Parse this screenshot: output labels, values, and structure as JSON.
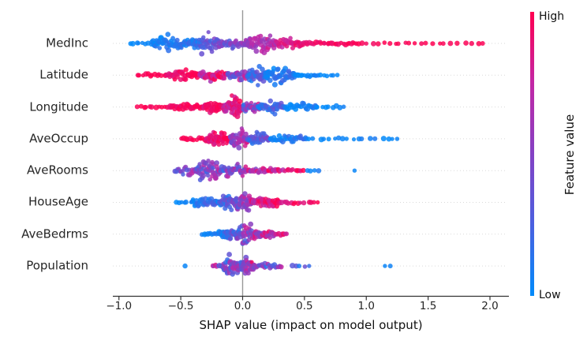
{
  "chart_data": {
    "type": "beeswarm",
    "x_axis": {
      "label": "SHAP value (impact on model output)",
      "ticks": [
        -1.0,
        -0.5,
        0.0,
        0.5,
        1.0,
        1.5,
        2.0
      ],
      "tick_labels": [
        "−1.0",
        "−0.5",
        "0.0",
        "0.5",
        "1.0",
        "1.5",
        "2.0"
      ],
      "lim": [
        -1.05,
        2.15
      ],
      "zero_reference_line": 0.0
    },
    "grid": "dotted-horizontal",
    "background": "#ffffff",
    "colorbar": {
      "title": "Feature value",
      "high_label": "High",
      "low_label": "Low",
      "color_high": "#ff0051",
      "color_low": "#008bfb"
    },
    "colormap": [
      {
        "t": 0.0,
        "color": "#008bfb"
      },
      {
        "t": 0.25,
        "color": "#4a60e0"
      },
      {
        "t": 0.5,
        "color": "#8441c4"
      },
      {
        "t": 0.75,
        "color": "#c327a5"
      },
      {
        "t": 1.0,
        "color": "#ff0051"
      }
    ],
    "clusters_format": [
      "x_min",
      "x_max",
      "count",
      "width_amplitude_0to1",
      "color_start_0to1",
      "color_end_0to1",
      "color_jitter"
    ],
    "features": [
      {
        "name": "MedInc",
        "shap_min": -0.92,
        "shap_max": 1.97,
        "clusters": [
          [
            -0.92,
            -0.74,
            7,
            0.1,
            0.02,
            0.05,
            0.03
          ],
          [
            -0.74,
            -0.45,
            55,
            0.75,
            0.02,
            0.15,
            0.1
          ],
          [
            -0.45,
            -0.15,
            60,
            0.85,
            0.1,
            0.45,
            0.15
          ],
          [
            -0.15,
            0.02,
            25,
            0.45,
            0.35,
            0.55,
            0.15
          ],
          [
            0.02,
            0.28,
            55,
            0.8,
            0.55,
            0.75,
            0.15
          ],
          [
            0.28,
            0.5,
            30,
            0.45,
            0.8,
            0.92,
            0.08
          ],
          [
            0.5,
            0.95,
            28,
            0.18,
            0.93,
            1.0,
            0.05
          ],
          [
            0.95,
            1.55,
            14,
            0.1,
            0.97,
            1.0,
            0.03
          ],
          [
            1.55,
            1.97,
            8,
            0.06,
            0.98,
            1.0,
            0.02
          ]
        ]
      },
      {
        "name": "Latitude",
        "shap_min": -0.86,
        "shap_max": 0.78,
        "clusters": [
          [
            -0.86,
            -0.62,
            12,
            0.12,
            0.97,
            1.0,
            0.04
          ],
          [
            -0.62,
            -0.35,
            40,
            0.45,
            0.92,
            1.0,
            0.08
          ],
          [
            -0.35,
            -0.12,
            45,
            0.55,
            0.7,
            0.95,
            0.18
          ],
          [
            -0.12,
            0.06,
            30,
            0.5,
            0.4,
            0.65,
            0.25
          ],
          [
            0.04,
            0.2,
            45,
            0.8,
            0.15,
            0.35,
            0.15
          ],
          [
            0.18,
            0.42,
            55,
            0.9,
            0.02,
            0.2,
            0.1
          ],
          [
            0.42,
            0.62,
            14,
            0.18,
            0.0,
            0.08,
            0.05
          ],
          [
            0.62,
            0.78,
            6,
            0.08,
            0.0,
            0.05,
            0.03
          ]
        ]
      },
      {
        "name": "Longitude",
        "shap_min": -0.86,
        "shap_max": 0.83,
        "clusters": [
          [
            -0.86,
            -0.6,
            11,
            0.1,
            0.97,
            1.0,
            0.03
          ],
          [
            -0.6,
            -0.32,
            30,
            0.35,
            0.93,
            1.0,
            0.06
          ],
          [
            -0.32,
            -0.16,
            40,
            0.6,
            0.88,
            1.0,
            0.08
          ],
          [
            -0.16,
            0.0,
            65,
            1.0,
            0.75,
            0.95,
            0.12
          ],
          [
            0.0,
            0.14,
            35,
            0.6,
            0.35,
            0.6,
            0.25
          ],
          [
            0.12,
            0.34,
            45,
            0.55,
            0.1,
            0.3,
            0.15
          ],
          [
            0.34,
            0.6,
            25,
            0.3,
            0.02,
            0.12,
            0.06
          ],
          [
            0.6,
            0.83,
            8,
            0.1,
            0.0,
            0.05,
            0.03
          ]
        ]
      },
      {
        "name": "AveOccup",
        "shap_min": -0.5,
        "shap_max": 1.26,
        "clusters": [
          [
            -0.5,
            -0.3,
            12,
            0.18,
            0.95,
            1.0,
            0.05
          ],
          [
            -0.3,
            -0.1,
            55,
            0.65,
            0.85,
            1.0,
            0.1
          ],
          [
            -0.1,
            0.04,
            45,
            0.95,
            0.45,
            0.75,
            0.2
          ],
          [
            0.04,
            0.22,
            40,
            0.55,
            0.2,
            0.45,
            0.18
          ],
          [
            0.22,
            0.52,
            35,
            0.35,
            0.03,
            0.18,
            0.08
          ],
          [
            0.52,
            1.08,
            14,
            0.1,
            0.0,
            0.06,
            0.04
          ],
          [
            1.13,
            1.26,
            4,
            0.05,
            0.0,
            0.05,
            0.03
          ]
        ]
      },
      {
        "name": "AveRooms",
        "shap_min": -0.55,
        "shap_max": 0.9,
        "clusters": [
          [
            -0.55,
            -0.38,
            18,
            0.45,
            0.4,
            0.55,
            0.22
          ],
          [
            -0.38,
            -0.18,
            55,
            1.0,
            0.35,
            0.55,
            0.28
          ],
          [
            -0.18,
            0.05,
            45,
            0.6,
            0.4,
            0.6,
            0.3
          ],
          [
            0.05,
            0.3,
            28,
            0.28,
            0.65,
            0.85,
            0.25
          ],
          [
            0.3,
            0.5,
            12,
            0.14,
            0.8,
            0.95,
            0.15
          ],
          [
            0.5,
            0.62,
            4,
            0.06,
            0.03,
            0.08,
            0.04
          ],
          [
            0.9,
            0.91,
            1,
            0.0,
            0.03,
            0.03,
            0.0
          ]
        ]
      },
      {
        "name": "HouseAge",
        "shap_min": -0.54,
        "shap_max": 0.61,
        "clusters": [
          [
            -0.54,
            -0.44,
            5,
            0.06,
            0.02,
            0.06,
            0.03
          ],
          [
            -0.42,
            -0.2,
            35,
            0.4,
            0.05,
            0.25,
            0.12
          ],
          [
            -0.2,
            -0.04,
            45,
            0.7,
            0.15,
            0.45,
            0.22
          ],
          [
            -0.06,
            0.08,
            50,
            1.0,
            0.45,
            0.75,
            0.25
          ],
          [
            0.08,
            0.3,
            40,
            0.5,
            0.75,
            0.95,
            0.15
          ],
          [
            0.3,
            0.5,
            10,
            0.14,
            0.85,
            1.0,
            0.12
          ],
          [
            0.52,
            0.61,
            4,
            0.05,
            0.93,
            1.0,
            0.04
          ]
        ]
      },
      {
        "name": "AveBedrms",
        "shap_min": -0.33,
        "shap_max": 0.36,
        "clusters": [
          [
            -0.33,
            -0.2,
            10,
            0.12,
            0.02,
            0.1,
            0.06
          ],
          [
            -0.2,
            -0.06,
            35,
            0.55,
            0.1,
            0.35,
            0.18
          ],
          [
            -0.06,
            0.12,
            55,
            0.95,
            0.35,
            0.65,
            0.3
          ],
          [
            0.12,
            0.26,
            25,
            0.4,
            0.6,
            0.8,
            0.22
          ],
          [
            0.26,
            0.36,
            8,
            0.12,
            0.75,
            0.9,
            0.12
          ]
        ]
      },
      {
        "name": "Population",
        "shap_min": -0.47,
        "shap_max": 1.2,
        "clusters": [
          [
            -0.47,
            -0.46,
            1,
            0.0,
            0.03,
            0.03,
            0.0
          ],
          [
            -0.25,
            -0.16,
            7,
            0.12,
            0.45,
            0.6,
            0.45
          ],
          [
            -0.16,
            -0.02,
            50,
            0.9,
            0.35,
            0.55,
            0.28
          ],
          [
            -0.02,
            0.1,
            40,
            0.75,
            0.45,
            0.7,
            0.3
          ],
          [
            0.1,
            0.32,
            22,
            0.25,
            0.35,
            0.6,
            0.35
          ],
          [
            0.38,
            0.55,
            5,
            0.06,
            0.15,
            0.45,
            0.35
          ],
          [
            1.15,
            1.2,
            2,
            0.02,
            0.02,
            0.05,
            0.02
          ]
        ]
      }
    ]
  }
}
